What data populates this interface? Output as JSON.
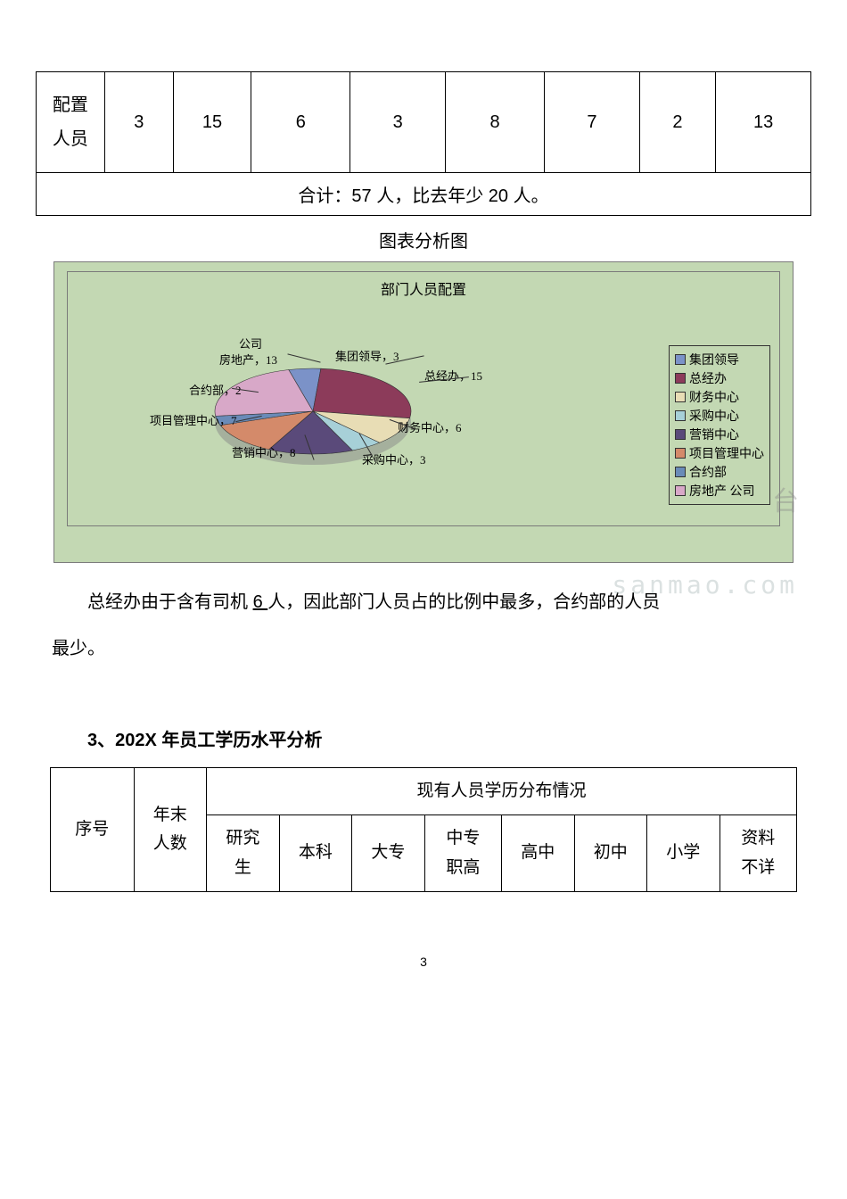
{
  "table1": {
    "row_label": "配置\n人员",
    "values": [
      "3",
      "15",
      "6",
      "3",
      "8",
      "7",
      "2",
      "13"
    ],
    "summary": "合计：57 人，比去年少 20 人。"
  },
  "chart": {
    "caption": "图表分析图",
    "title": "部门人员配置",
    "type": "pie",
    "background_color": "#c3d8b3",
    "border_color": "#7a7a7a",
    "slices": [
      {
        "name": "集团领导",
        "value": 3,
        "color": "#7b92c8",
        "label": "集团领导，3"
      },
      {
        "name": "总经办",
        "value": 15,
        "color": "#8c3b5a",
        "label": "总经办，15"
      },
      {
        "name": "财务中心",
        "value": 6,
        "color": "#e8ddb5",
        "label": "财务中心，6"
      },
      {
        "name": "采购中心",
        "value": 3,
        "color": "#a7d0d8",
        "label": "采购中心，3"
      },
      {
        "name": "营销中心",
        "value": 8,
        "color": "#5a4a7a",
        "label": "营销中心，8"
      },
      {
        "name": "项目管理中心",
        "value": 7,
        "color": "#d48a6a",
        "label": "项目管理中心，7"
      },
      {
        "name": "合约部",
        "value": 2,
        "color": "#6a8bb8",
        "label": "合约部，2"
      },
      {
        "name": "房地产 公司",
        "value": 13,
        "color": "#d8a8c8",
        "label": "房地产，13"
      }
    ],
    "legend_items": [
      {
        "label": "集团领导",
        "color": "#7b92c8"
      },
      {
        "label": "总经办",
        "color": "#8c3b5a"
      },
      {
        "label": "财务中心",
        "color": "#e8ddb5"
      },
      {
        "label": "采购中心",
        "color": "#a7d0d8"
      },
      {
        "label": "营销中心",
        "color": "#5a4a7a"
      },
      {
        "label": "项目管理中心",
        "color": "#d48a6a"
      },
      {
        "label": "合约部",
        "color": "#6a8bb8"
      },
      {
        "label": "房地产 公司",
        "color": "#d8a8c8"
      }
    ],
    "slice_labels": {
      "company_prefix": "公司",
      "realestate": "房地产，13",
      "group_leader": "集团领导，3",
      "general_office": "总经办，15",
      "contract": "合约部，2",
      "project_mgmt": "项目管理中心，7",
      "marketing": "营销中心，8",
      "procurement": "采购中心，3",
      "finance": "财务中心，6"
    },
    "watermark_text": "sanmao.com",
    "watermark_char": "台"
  },
  "body_paragraph_pre": "总经办由于含有司机 ",
  "body_paragraph_underlined": "6 ",
  "body_paragraph_post": "人，因此部门人员占的比例中最多，合约部的人员",
  "body_paragraph_line2": "最少。",
  "section_heading": "3、202X 年员工学历水平分析",
  "table2": {
    "h_seq": "序号",
    "h_year_end": "年末\n人数",
    "h_dist": "现有人员学历分布情况",
    "cols": [
      "研究\n生",
      "本科",
      "大专",
      "中专\n职高",
      "高中",
      "初中",
      "小学",
      "资料\n不详"
    ]
  },
  "page_number": "3"
}
